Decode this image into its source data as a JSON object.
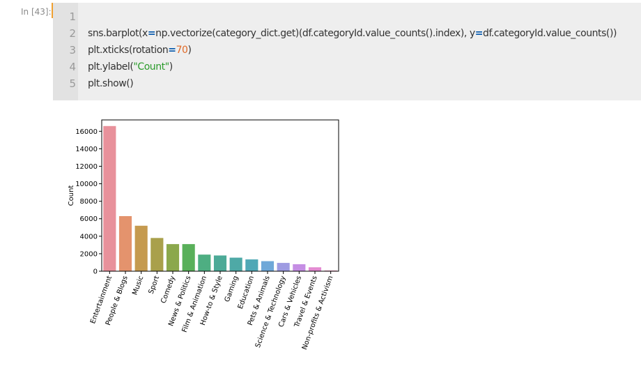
{
  "prompt": "In [43]:",
  "code": {
    "line_numbers": [
      "1",
      "2",
      "3",
      "4",
      "5"
    ],
    "line2": {
      "p1": "sns.barplot(x",
      "eq1": "=",
      "p2": "np.vectorize(category_dict.get)(df.categoryId.value_counts().index), y",
      "eq2": "=",
      "p3": "df.categoryId.value_counts())"
    },
    "line3": {
      "p1": "plt.xticks(rotation",
      "eq": "=",
      "num": "70",
      "p2": ")"
    },
    "line4": {
      "p1": "plt.ylabel(",
      "str": "\"Count\"",
      "p2": ")"
    },
    "line5": {
      "p1": "plt.show()"
    }
  },
  "chart_data": {
    "type": "bar",
    "categories": [
      "Entertainment",
      "People & Blogs",
      "Music",
      "Sport",
      "Comedy",
      "News & Politics",
      "Film & Animation",
      "How-to & Style",
      "Gaming",
      "Education",
      "Pets & Animals",
      "Science & Technology",
      "Cars & Vehicles",
      "Travel & Events",
      "Non-profits & Activism"
    ],
    "values": [
      16600,
      6300,
      5200,
      3800,
      3100,
      3100,
      1900,
      1800,
      1550,
      1350,
      1150,
      950,
      800,
      450,
      80
    ],
    "colors": [
      "#e8919b",
      "#e4936d",
      "#c59a4f",
      "#a9a04b",
      "#8ba84c",
      "#59b05a",
      "#4eae82",
      "#4caa97",
      "#4ea9a6",
      "#4fa8b6",
      "#6fa8d8",
      "#9e9be2",
      "#c58ee4",
      "#e38ad1",
      "#e98fb5"
    ],
    "ylabel": "Count",
    "xlabel": "",
    "ylim": [
      0,
      17300
    ],
    "yticks": [
      0,
      2000,
      4000,
      6000,
      8000,
      10000,
      12000,
      14000,
      16000
    ],
    "grid": false
  }
}
